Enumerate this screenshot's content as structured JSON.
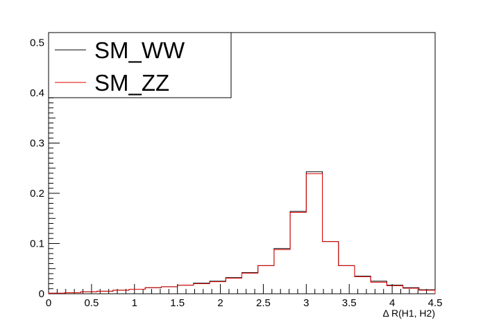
{
  "chart_data": {
    "type": "line",
    "title": "",
    "xlabel": "Δ R(H1, H2)",
    "ylabel": "",
    "xlim": [
      0,
      4.5
    ],
    "ylim": [
      0,
      0.52
    ],
    "x_ticks": [
      "0",
      "0.5",
      "1",
      "1.5",
      "2",
      "2.5",
      "3",
      "3.5",
      "4",
      "4.5"
    ],
    "y_ticks": [
      "0",
      "0.1",
      "0.2",
      "0.3",
      "0.4",
      "0.5"
    ],
    "bin_edges": [
      0,
      0.1875,
      0.375,
      0.5625,
      0.75,
      0.9375,
      1.125,
      1.3125,
      1.5,
      1.6875,
      1.875,
      2.0625,
      2.25,
      2.4375,
      2.625,
      2.8125,
      3.0,
      3.1875,
      3.375,
      3.5625,
      3.75,
      3.9375,
      4.125,
      4.3125,
      4.5
    ],
    "legend_position": "top-left",
    "grid": false,
    "series": [
      {
        "name": "SM_WW",
        "color": "#000000",
        "values": [
          0.001,
          0.002,
          0.004,
          0.005,
          0.007,
          0.009,
          0.012,
          0.014,
          0.017,
          0.021,
          0.025,
          0.032,
          0.042,
          0.056,
          0.09,
          0.164,
          0.243,
          0.104,
          0.056,
          0.035,
          0.025,
          0.017,
          0.012,
          0.008
        ]
      },
      {
        "name": "SM_ZZ",
        "color": "#e00000",
        "values": [
          0.001,
          0.002,
          0.004,
          0.005,
          0.007,
          0.009,
          0.012,
          0.014,
          0.017,
          0.02,
          0.024,
          0.031,
          0.041,
          0.056,
          0.088,
          0.162,
          0.239,
          0.104,
          0.056,
          0.034,
          0.023,
          0.016,
          0.011,
          0.007
        ]
      }
    ]
  }
}
